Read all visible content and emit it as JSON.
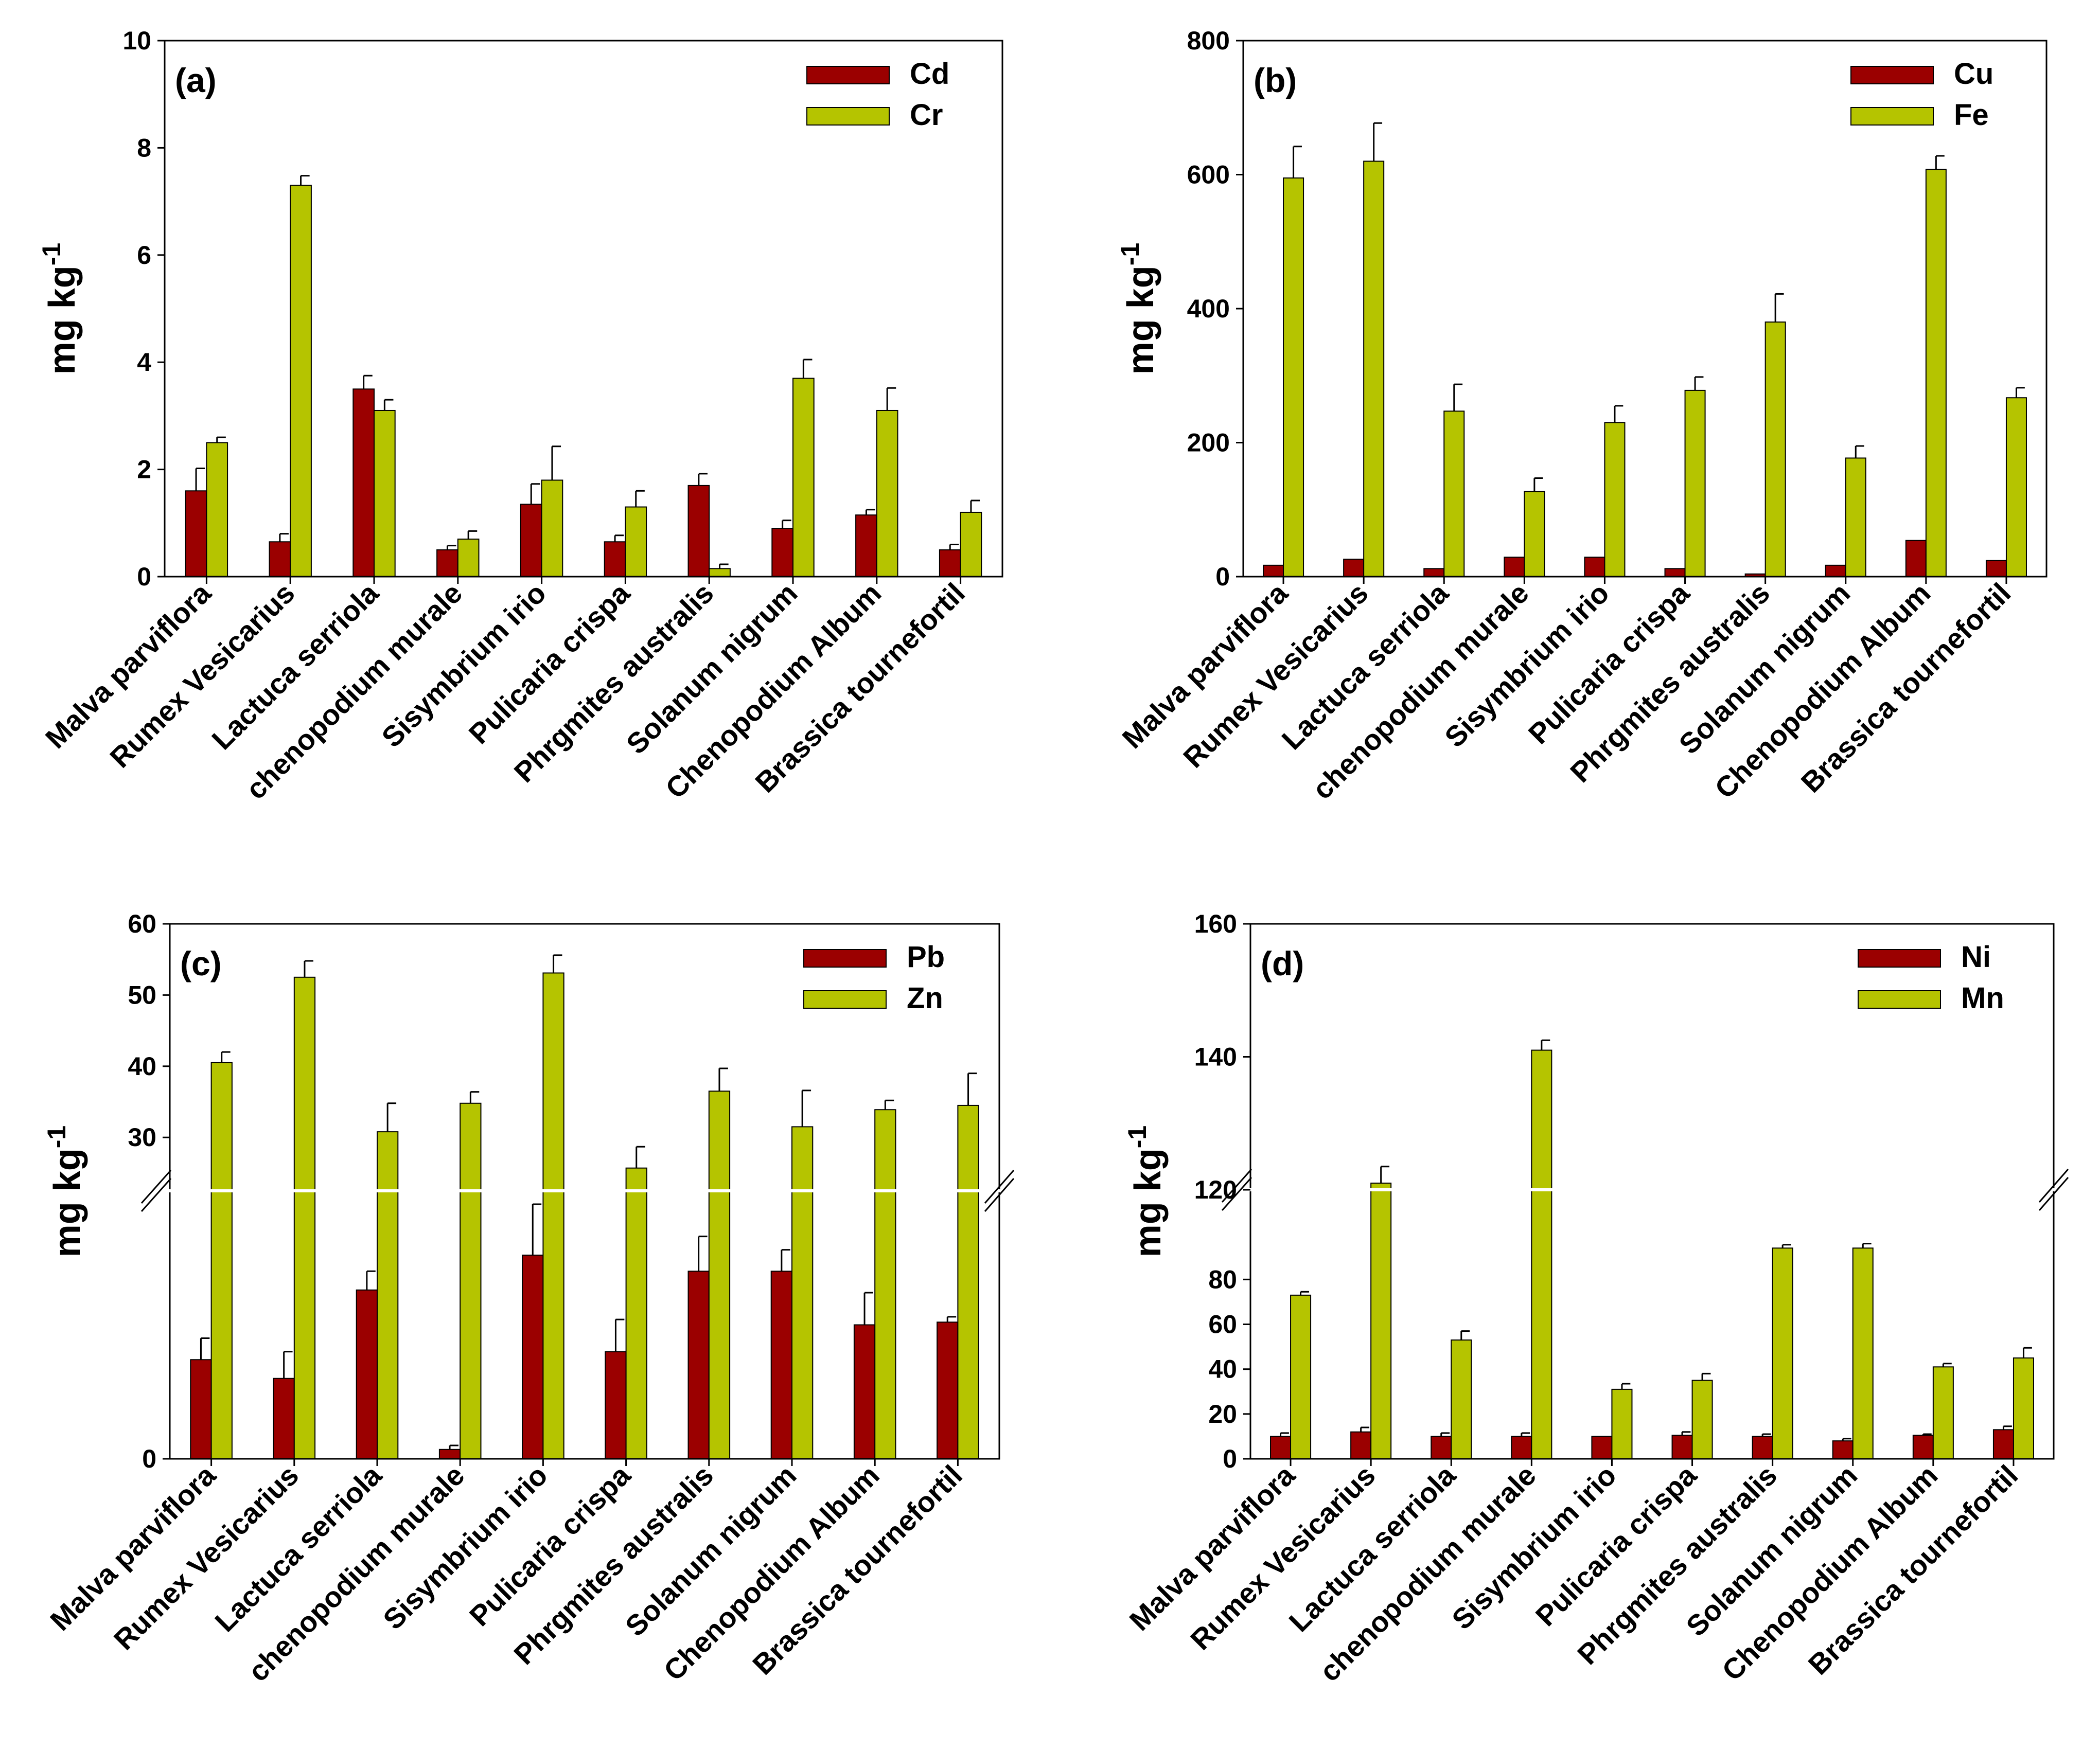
{
  "colors": {
    "series1": "#9b0000",
    "series2": "#b5c400",
    "axis": "#000000",
    "background": "#ffffff"
  },
  "chart_data": [
    {
      "type": "bar",
      "panel_label": "(a)",
      "ylabel": "mg kg",
      "ylabel_superscript": "-1",
      "ylim": [
        0,
        10
      ],
      "yticks": [
        0,
        2,
        4,
        6,
        8,
        10
      ],
      "tick_labels": [
        "0",
        "2",
        "4",
        "6",
        "8",
        "10"
      ],
      "legend_position": "top-right",
      "categories": [
        "Malva parviflora",
        "Rumex Vesicarius",
        "Lactuca serriola",
        "chenopodium murale",
        "Sisymbrium irio",
        "Pulicaria crispa",
        "Phrgmites australis",
        "Solanum nigrum",
        "Chenopodium Album",
        "Brassica tournefortil"
      ],
      "series": [
        {
          "name": "Cd",
          "values": [
            1.6,
            0.65,
            3.5,
            0.5,
            1.35,
            0.65,
            1.7,
            0.9,
            1.15,
            0.5
          ],
          "errors": [
            0.42,
            0.15,
            0.25,
            0.08,
            0.38,
            0.12,
            0.22,
            0.15,
            0.1,
            0.1
          ]
        },
        {
          "name": "Cr",
          "values": [
            2.5,
            7.3,
            3.1,
            0.7,
            1.8,
            1.3,
            0.15,
            3.7,
            3.1,
            1.2
          ],
          "errors": [
            0.1,
            0.18,
            0.2,
            0.15,
            0.63,
            0.3,
            0.08,
            0.35,
            0.42,
            0.22
          ]
        }
      ]
    },
    {
      "type": "bar",
      "panel_label": "(b)",
      "ylabel": "mg kg",
      "ylabel_superscript": "-1",
      "ylim": [
        0,
        800
      ],
      "yticks": [
        0,
        200,
        400,
        600,
        800
      ],
      "tick_labels": [
        "0",
        "200",
        "400",
        "600",
        "800"
      ],
      "legend_position": "top-right",
      "categories": [
        "Malva parviflora",
        "Rumex Vesicarius",
        "Lactuca serriola",
        "chenopodium murale",
        "Sisymbrium irio",
        "Pulicaria crispa",
        "Phrgmites australis",
        "Solanum nigrum",
        "Chenopodium Album",
        "Brassica tournefortil"
      ],
      "series": [
        {
          "name": "Cu",
          "values": [
            17,
            26,
            12,
            29,
            29,
            12,
            4,
            17,
            54,
            24
          ],
          "errors": [
            0,
            0,
            0,
            0,
            0,
            0,
            0,
            0,
            0,
            0
          ]
        },
        {
          "name": "Fe",
          "values": [
            595,
            620,
            247,
            127,
            230,
            278,
            380,
            177,
            608,
            267
          ],
          "errors": [
            47,
            57,
            40,
            20,
            25,
            20,
            42,
            18,
            20,
            15
          ]
        }
      ]
    },
    {
      "type": "bar",
      "panel_label": "(c)",
      "ylabel": "mg kg",
      "ylabel_superscript": "-1",
      "axis_break": true,
      "ylim": [
        0,
        60
      ],
      "yticks": [
        0,
        30,
        40,
        50,
        60
      ],
      "tick_labels": [
        "0",
        "30",
        "40",
        "50",
        "60"
      ],
      "legend_position": "top-right",
      "categories": [
        "Malva parviflora",
        "Rumex Vesicarius",
        "Lactuca serriola",
        "chenopodium murale",
        "Sisymbrium irio",
        "Pulicaria crispa",
        "Phrgmites australis",
        "Solanum nigrum",
        "Chenopodium Album",
        "Brassica tournefortil"
      ],
      "series": [
        {
          "name": "Pb",
          "values": [
            3.7,
            3.0,
            6.3,
            0.35,
            7.6,
            4.0,
            7.0,
            7.0,
            5.0,
            5.1
          ],
          "errors": [
            0.8,
            1.0,
            0.7,
            0.15,
            1.9,
            1.2,
            1.3,
            0.8,
            1.2,
            0.2
          ]
        },
        {
          "name": "Zn",
          "values": [
            40.5,
            52.5,
            30.8,
            34.8,
            53.1,
            25.7,
            36.5,
            31.5,
            33.9,
            34.5
          ],
          "errors": [
            1.5,
            2.3,
            4.0,
            1.6,
            2.5,
            3.0,
            3.2,
            5.1,
            1.3,
            4.5
          ]
        }
      ]
    },
    {
      "type": "bar",
      "panel_label": "(d)",
      "ylabel": "mg kg",
      "ylabel_superscript": "-1",
      "axis_break": true,
      "ylim": [
        0,
        160
      ],
      "yticks": [
        0,
        20,
        40,
        60,
        80,
        120,
        140,
        160
      ],
      "tick_labels": [
        "0",
        "20",
        "40",
        "60",
        "80",
        "120",
        "140",
        "160"
      ],
      "legend_position": "top-right",
      "categories": [
        "Malva parviflora",
        "Rumex Vesicarius",
        "Lactuca serriola",
        "chenopodium murale",
        "Sisymbrium irio",
        "Pulicaria crispa",
        "Phrgmites australis",
        "Solanum nigrum",
        "Chenopodium Album",
        "Brassica tournefortil"
      ],
      "series": [
        {
          "name": "Ni",
          "values": [
            10,
            12,
            10,
            10,
            10,
            10.5,
            10,
            8,
            10.5,
            13
          ],
          "errors": [
            1.5,
            2,
            1.5,
            1.5,
            0,
            1.5,
            1,
            1,
            0.5,
            1.5
          ]
        },
        {
          "name": "Mn",
          "values": [
            73,
            121,
            53,
            141,
            31,
            35,
            94,
            94,
            41,
            45
          ],
          "errors": [
            1.5,
            2.5,
            4,
            1.5,
            2.5,
            3,
            1.5,
            2,
            1.5,
            4.5
          ]
        }
      ]
    }
  ]
}
